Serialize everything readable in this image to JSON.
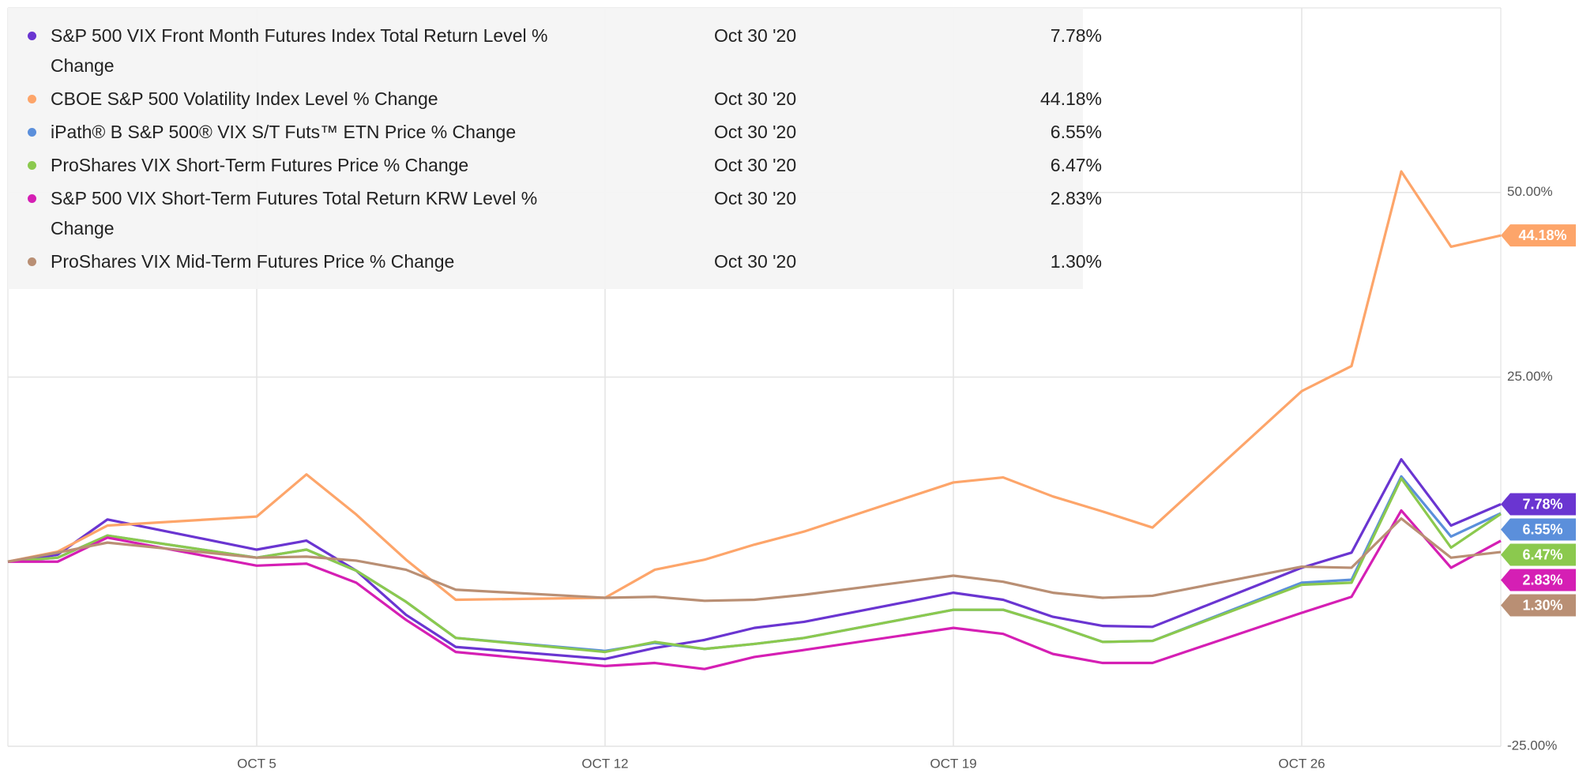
{
  "chart_data": {
    "type": "line",
    "x": [
      "2020-09-30",
      "2020-10-01",
      "2020-10-02",
      "2020-10-05",
      "2020-10-06",
      "2020-10-07",
      "2020-10-08",
      "2020-10-09",
      "2020-10-12",
      "2020-10-13",
      "2020-10-14",
      "2020-10-15",
      "2020-10-16",
      "2020-10-19",
      "2020-10-20",
      "2020-10-21",
      "2020-10-22",
      "2020-10-23",
      "2020-10-26",
      "2020-10-27",
      "2020-10-28",
      "2020-10-29",
      "2020-10-30"
    ],
    "xlim": [
      "2020-09-30",
      "2020-10-30"
    ],
    "xticks": [
      {
        "value": "2020-10-05",
        "label": "OCT 5"
      },
      {
        "value": "2020-10-12",
        "label": "OCT 12"
      },
      {
        "value": "2020-10-19",
        "label": "OCT 19"
      },
      {
        "value": "2020-10-26",
        "label": "OCT 26"
      }
    ],
    "ylim": [
      -25,
      75
    ],
    "yticks": [
      {
        "value": -25,
        "label": "-25.00%"
      },
      {
        "value": 25,
        "label": "25.00%"
      },
      {
        "value": 50,
        "label": "50.00%"
      }
    ],
    "grid": true,
    "legend_date": "Oct 30 '20",
    "series": [
      {
        "name": "S&P 500 VIX Front Month Futures Index Total Return Level % Change",
        "color": "#6a35d1",
        "values": [
          0,
          0.95,
          5.71,
          1.63,
          2.85,
          -1.22,
          -7.2,
          -11.55,
          -13.18,
          -11.69,
          -10.6,
          -8.97,
          -8.15,
          -4.21,
          -5.16,
          -7.47,
          -8.7,
          -8.83,
          -0.82,
          1.22,
          13.86,
          4.89,
          7.78
        ],
        "value_labels": [
          null,
          null,
          null,
          null,
          null,
          null,
          null,
          null,
          null,
          null,
          null,
          null,
          null,
          null,
          null,
          null,
          null,
          null,
          null,
          null,
          null,
          null,
          "7.78%"
        ]
      },
      {
        "name": "CBOE S&P 500 Volatility Index Level % Change",
        "color": "#fda56a",
        "values": [
          0,
          1.36,
          4.89,
          6.11,
          11.82,
          6.39,
          0.27,
          -5.16,
          -4.89,
          -1.09,
          0.27,
          2.31,
          4.08,
          10.73,
          11.41,
          8.83,
          6.79,
          4.62,
          23.1,
          26.49,
          52.85,
          42.66,
          44.18
        ],
        "value_labels": [
          null,
          null,
          null,
          null,
          null,
          null,
          null,
          null,
          null,
          null,
          null,
          null,
          null,
          null,
          null,
          null,
          null,
          null,
          null,
          null,
          null,
          null,
          "44.18%"
        ]
      },
      {
        "name": "iPath® B S&P 500® VIX S/T Futs™ ETN Price % Change",
        "color": "#5b8fdb",
        "values": [
          0,
          0.54,
          3.53,
          0.54,
          1.63,
          -1.22,
          -5.43,
          -10.33,
          -12.09,
          -11.0,
          -11.82,
          -11.14,
          -10.33,
          -6.52,
          -6.52,
          -8.56,
          -10.87,
          -10.73,
          -2.85,
          -2.45,
          11.55,
          3.4,
          6.55
        ],
        "value_labels": [
          null,
          null,
          null,
          null,
          null,
          null,
          null,
          null,
          null,
          null,
          null,
          null,
          null,
          null,
          null,
          null,
          null,
          null,
          null,
          null,
          null,
          null,
          "6.55%"
        ]
      },
      {
        "name": "ProShares VIX Short-Term Futures Price % Change",
        "color": "#8bc94e",
        "values": [
          0,
          0.54,
          3.53,
          0.54,
          1.63,
          -1.22,
          -5.43,
          -10.33,
          -12.23,
          -10.87,
          -11.82,
          -11.14,
          -10.33,
          -6.52,
          -6.52,
          -8.56,
          -10.87,
          -10.73,
          -3.13,
          -2.85,
          11.28,
          1.9,
          6.47
        ],
        "value_labels": [
          null,
          null,
          null,
          null,
          null,
          null,
          null,
          null,
          null,
          null,
          null,
          null,
          null,
          null,
          null,
          null,
          null,
          null,
          null,
          null,
          null,
          null,
          "6.47%"
        ]
      },
      {
        "name": "S&P 500 VIX Short-Term Futures Total Return KRW Level % Change",
        "color": "#d51fb4",
        "values": [
          0,
          0,
          3.26,
          -0.54,
          -0.27,
          -2.85,
          -7.88,
          -12.23,
          -14.13,
          -13.72,
          -14.54,
          -12.91,
          -11.96,
          -8.97,
          -9.78,
          -12.5,
          -13.72,
          -13.72,
          -6.93,
          -4.76,
          6.93,
          -0.82,
          2.83
        ],
        "value_labels": [
          null,
          null,
          null,
          null,
          null,
          null,
          null,
          null,
          null,
          null,
          null,
          null,
          null,
          null,
          null,
          null,
          null,
          null,
          null,
          null,
          null,
          null,
          "2.83%"
        ]
      },
      {
        "name": "ProShares VIX Mid-Term Futures Price % Change",
        "color": "#b98f74",
        "values": [
          0,
          1.22,
          2.58,
          0.54,
          0.68,
          0.14,
          -1.09,
          -3.8,
          -4.89,
          -4.76,
          -5.3,
          -5.16,
          -4.48,
          -1.9,
          -2.72,
          -4.21,
          -4.89,
          -4.62,
          -0.68,
          -0.82,
          5.84,
          0.54,
          1.3
        ],
        "value_labels": [
          null,
          null,
          null,
          null,
          null,
          null,
          null,
          null,
          null,
          null,
          null,
          null,
          null,
          null,
          null,
          null,
          null,
          null,
          null,
          null,
          null,
          null,
          "1.30%"
        ]
      }
    ]
  }
}
